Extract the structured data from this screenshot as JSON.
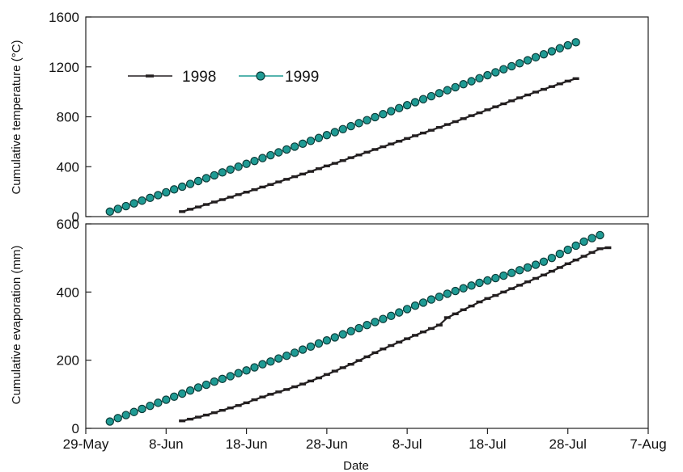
{
  "chart_data": [
    {
      "type": "line",
      "title": "",
      "xlabel": "",
      "ylabel": "Cumulative temperature (°C)",
      "ylim": [
        0,
        1600
      ],
      "yticks": [
        0,
        400,
        800,
        1200,
        1600
      ],
      "grid": false,
      "legend": "upper-left inside",
      "series": [
        {
          "name": "1998",
          "style": "line with small dash markers",
          "color": "#231f20",
          "x_start": "1998-06-10",
          "values": [
            40,
            59,
            77,
            97,
            117,
            136,
            156,
            176,
            196,
            216,
            237,
            257,
            278,
            299,
            320,
            341,
            362,
            384,
            406,
            427,
            449,
            472,
            494,
            516,
            538,
            560,
            582,
            604,
            626,
            648,
            670,
            692,
            715,
            738,
            761,
            785,
            809,
            832,
            856,
            880,
            904,
            928,
            952,
            975,
            998,
            1020,
            1042,
            1064,
            1086,
            1106
          ]
        },
        {
          "name": "1999",
          "style": "line with circle markers",
          "color": "#1f9b94",
          "x_start": "1999-06-01",
          "values": [
            40,
            62,
            84,
            106,
            128,
            150,
            172,
            195,
            218,
            240,
            262,
            285,
            308,
            331,
            354,
            377,
            400,
            423,
            446,
            469,
            492,
            515,
            538,
            561,
            584,
            607,
            630,
            653,
            677,
            701,
            725,
            749,
            773,
            797,
            821,
            845,
            869,
            893,
            917,
            941,
            965,
            989,
            1013,
            1037,
            1061,
            1085,
            1109,
            1133,
            1157,
            1181,
            1205,
            1229,
            1253,
            1277,
            1301,
            1325,
            1349,
            1373,
            1397
          ]
        }
      ]
    },
    {
      "type": "line",
      "title": "",
      "xlabel": "Date",
      "ylabel": "Cumulative evaporation (mm)",
      "ylim": [
        0,
        600
      ],
      "yticks": [
        0,
        200,
        400,
        600
      ],
      "xlim": [
        "05-29",
        "08-07"
      ],
      "xticks": [
        "29-May",
        "8-Jun",
        "18-Jun",
        "28-Jun",
        "8-Jul",
        "18-Jul",
        "28-Jul",
        "7-Aug"
      ],
      "grid": false,
      "series": [
        {
          "name": "1998",
          "style": "line with small dash markers",
          "color": "#231f20",
          "x_start": "1998-06-10",
          "values": [
            22,
            27,
            33,
            39,
            46,
            53,
            60,
            67,
            75,
            84,
            92,
            100,
            107,
            114,
            122,
            130,
            139,
            148,
            158,
            168,
            178,
            188,
            199,
            210,
            222,
            233,
            243,
            253,
            263,
            273,
            283,
            293,
            303,
            325,
            336,
            348,
            359,
            371,
            381,
            390,
            400,
            410,
            420,
            430,
            440,
            450,
            461,
            472,
            483,
            494,
            505,
            516,
            527,
            530
          ]
        },
        {
          "name": "1999",
          "style": "line with circle markers",
          "color": "#1f9b94",
          "x_start": "1999-06-01",
          "values": [
            20,
            30,
            39,
            48,
            57,
            66,
            75,
            84,
            93,
            102,
            111,
            120,
            128,
            137,
            145,
            153,
            162,
            170,
            179,
            188,
            196,
            205,
            213,
            222,
            231,
            240,
            249,
            258,
            267,
            276,
            285,
            294,
            303,
            312,
            321,
            330,
            340,
            350,
            360,
            369,
            378,
            386,
            395,
            403,
            411,
            419,
            427,
            434,
            441,
            448,
            456,
            464,
            472,
            480,
            489,
            500,
            512,
            524,
            536,
            548,
            558,
            567
          ]
        }
      ]
    }
  ],
  "colors": {
    "series_1998": "#231f20",
    "series_1999": "#1f9b94",
    "marker_1999_fill": "#1f9b94",
    "marker_1999_stroke": "#0c3b38"
  }
}
